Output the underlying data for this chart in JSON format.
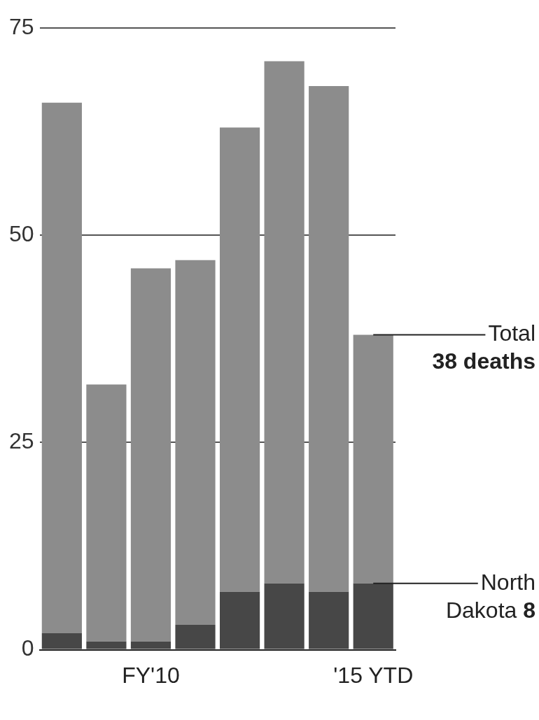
{
  "chart_data": {
    "type": "bar",
    "stacked": true,
    "categories": [
      null,
      null,
      "FY'10",
      null,
      null,
      null,
      null,
      "'15 YTD"
    ],
    "series": [
      {
        "color": "#474747",
        "values": [
          2,
          1,
          1,
          3,
          7,
          8,
          7,
          8
        ]
      },
      {
        "color": "#8c8c8c",
        "values": [
          64,
          31,
          45,
          44,
          56,
          63,
          61,
          30
        ]
      }
    ],
    "ylim": [
      0,
      75
    ],
    "yticks": [
      0,
      25,
      50,
      75
    ],
    "grid": "y",
    "annotations": [
      {
        "text": "Total 38 deaths",
        "x": "'15 YTD",
        "y": 38
      },
      {
        "text": "North Dakota 8",
        "x": "'15 YTD",
        "y": 8
      }
    ]
  }
}
